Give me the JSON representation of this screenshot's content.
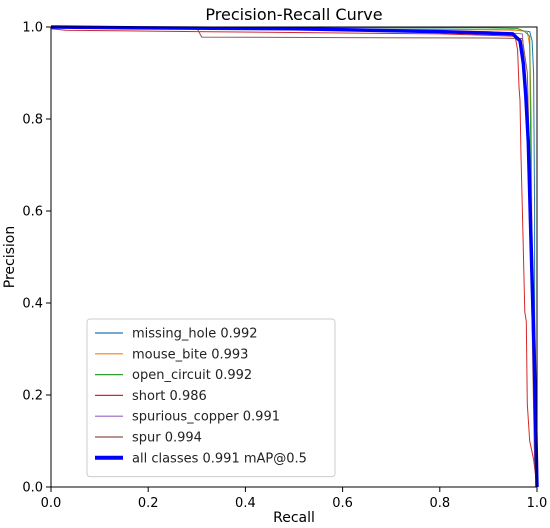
{
  "chart_data": {
    "type": "line",
    "title": "Precision-Recall Curve",
    "xlabel": "Recall",
    "ylabel": "Precision",
    "xlim": [
      0,
      1
    ],
    "ylim": [
      0,
      1
    ],
    "xticks": [
      "0.0",
      "0.2",
      "0.4",
      "0.6",
      "0.8",
      "1.0"
    ],
    "yticks": [
      "0.0",
      "0.2",
      "0.4",
      "0.6",
      "0.8",
      "1.0"
    ],
    "grid": false,
    "legend_position": "lower-left",
    "series": [
      {
        "name": "missing_hole 0.992",
        "color": "#1f77b4",
        "width": 1,
        "x": [
          0.0,
          0.2,
          0.5,
          0.8,
          0.95,
          0.985,
          0.99,
          0.993,
          0.995,
          0.995,
          0.997,
          1.0
        ],
        "y": [
          1.0,
          0.997,
          0.996,
          0.995,
          0.994,
          0.99,
          0.97,
          0.9,
          0.6,
          0.3,
          0.05,
          0.0
        ]
      },
      {
        "name": "mouse_bite 0.993",
        "color": "#ff7f0e",
        "width": 1,
        "x": [
          0.0,
          0.3,
          0.6,
          0.9,
          0.96,
          0.98,
          0.985,
          0.988,
          0.99,
          0.993,
          0.997,
          1.0
        ],
        "y": [
          1.0,
          0.996,
          0.995,
          0.994,
          0.993,
          0.99,
          0.96,
          0.8,
          0.5,
          0.2,
          0.05,
          0.0
        ]
      },
      {
        "name": "open_circuit 0.992",
        "color": "#2ca02c",
        "width": 1,
        "x": [
          0.0,
          0.5,
          0.9,
          0.96,
          0.975,
          0.985,
          0.99,
          0.995,
          0.997,
          1.0
        ],
        "y": [
          1.0,
          0.999,
          0.998,
          0.997,
          0.99,
          0.98,
          0.4,
          0.38,
          0.1,
          0.0
        ]
      },
      {
        "name": "short 0.986",
        "color": "#d62728",
        "width": 1,
        "x": [
          0.0,
          0.03,
          0.3,
          0.8,
          0.955,
          0.96,
          0.963,
          0.965,
          0.967,
          0.97,
          0.975,
          0.978,
          0.98,
          0.985,
          0.993,
          1.0
        ],
        "y": [
          0.996,
          0.993,
          0.99,
          0.985,
          0.98,
          0.95,
          0.87,
          0.84,
          0.72,
          0.6,
          0.38,
          0.36,
          0.18,
          0.1,
          0.06,
          0.0
        ]
      },
      {
        "name": "spurious_copper 0.991",
        "color": "#9467bd",
        "width": 1,
        "x": [
          0.0,
          0.5,
          0.9,
          0.97,
          0.975,
          0.98,
          0.985,
          0.99,
          0.995,
          1.0
        ],
        "y": [
          1.0,
          0.995,
          0.99,
          0.985,
          0.9,
          0.8,
          0.55,
          0.5,
          0.1,
          0.0
        ]
      },
      {
        "name": "spur 0.994",
        "color": "#8c564b",
        "width": 1,
        "x": [
          0.0,
          0.3,
          0.31,
          0.6,
          0.9,
          0.97,
          0.98,
          0.985,
          0.99,
          0.995,
          1.0
        ],
        "y": [
          1.0,
          0.998,
          0.978,
          0.977,
          0.976,
          0.975,
          0.9,
          0.7,
          0.35,
          0.05,
          0.0
        ]
      },
      {
        "name": "all classes 0.991 mAP@0.5",
        "color": "#0000ff",
        "width": 3.5,
        "x": [
          0.0,
          0.2,
          0.5,
          0.8,
          0.95,
          0.965,
          0.972,
          0.977,
          0.982,
          0.986,
          0.99,
          0.994,
          0.997,
          1.0
        ],
        "y": [
          1.0,
          0.998,
          0.996,
          0.99,
          0.985,
          0.97,
          0.92,
          0.85,
          0.75,
          0.6,
          0.45,
          0.3,
          0.15,
          0.0
        ]
      }
    ]
  }
}
